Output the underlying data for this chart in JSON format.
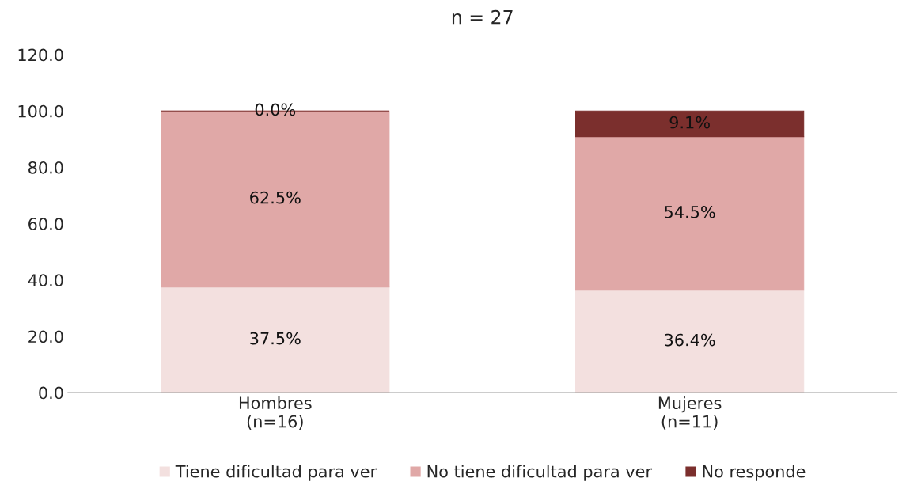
{
  "chart_data": {
    "type": "bar",
    "title": "n = 27",
    "stacked": true,
    "categories": [
      "Hombres\n(n=16)",
      "Mujeres\n(n=11)"
    ],
    "series": [
      {
        "name": "Tiene dificultad para ver",
        "color": "#f3e0df",
        "values": [
          37.5,
          36.4
        ],
        "value_labels": [
          "37.5%",
          "36.4%"
        ]
      },
      {
        "name": "No tiene dificultad para ver",
        "color": "#e0a8a7",
        "values": [
          62.5,
          54.5
        ],
        "value_labels": [
          "62.5%",
          "54.5%"
        ]
      },
      {
        "name": "No responde",
        "color": "#7b2f2d",
        "values": [
          0.0,
          9.1
        ],
        "value_labels": [
          "0.0%",
          "9.1%"
        ]
      }
    ],
    "ylim": [
      0,
      120
    ],
    "yticks": [
      {
        "value": 0,
        "label": "0.0"
      },
      {
        "value": 20,
        "label": "20.0"
      },
      {
        "value": 40,
        "label": "40.0"
      },
      {
        "value": 60,
        "label": "60.0"
      },
      {
        "value": 80,
        "label": "80.0"
      },
      {
        "value": 100,
        "label": "100.0"
      },
      {
        "value": 120,
        "label": "120.0"
      }
    ],
    "grid": false,
    "legend": "bottom"
  }
}
